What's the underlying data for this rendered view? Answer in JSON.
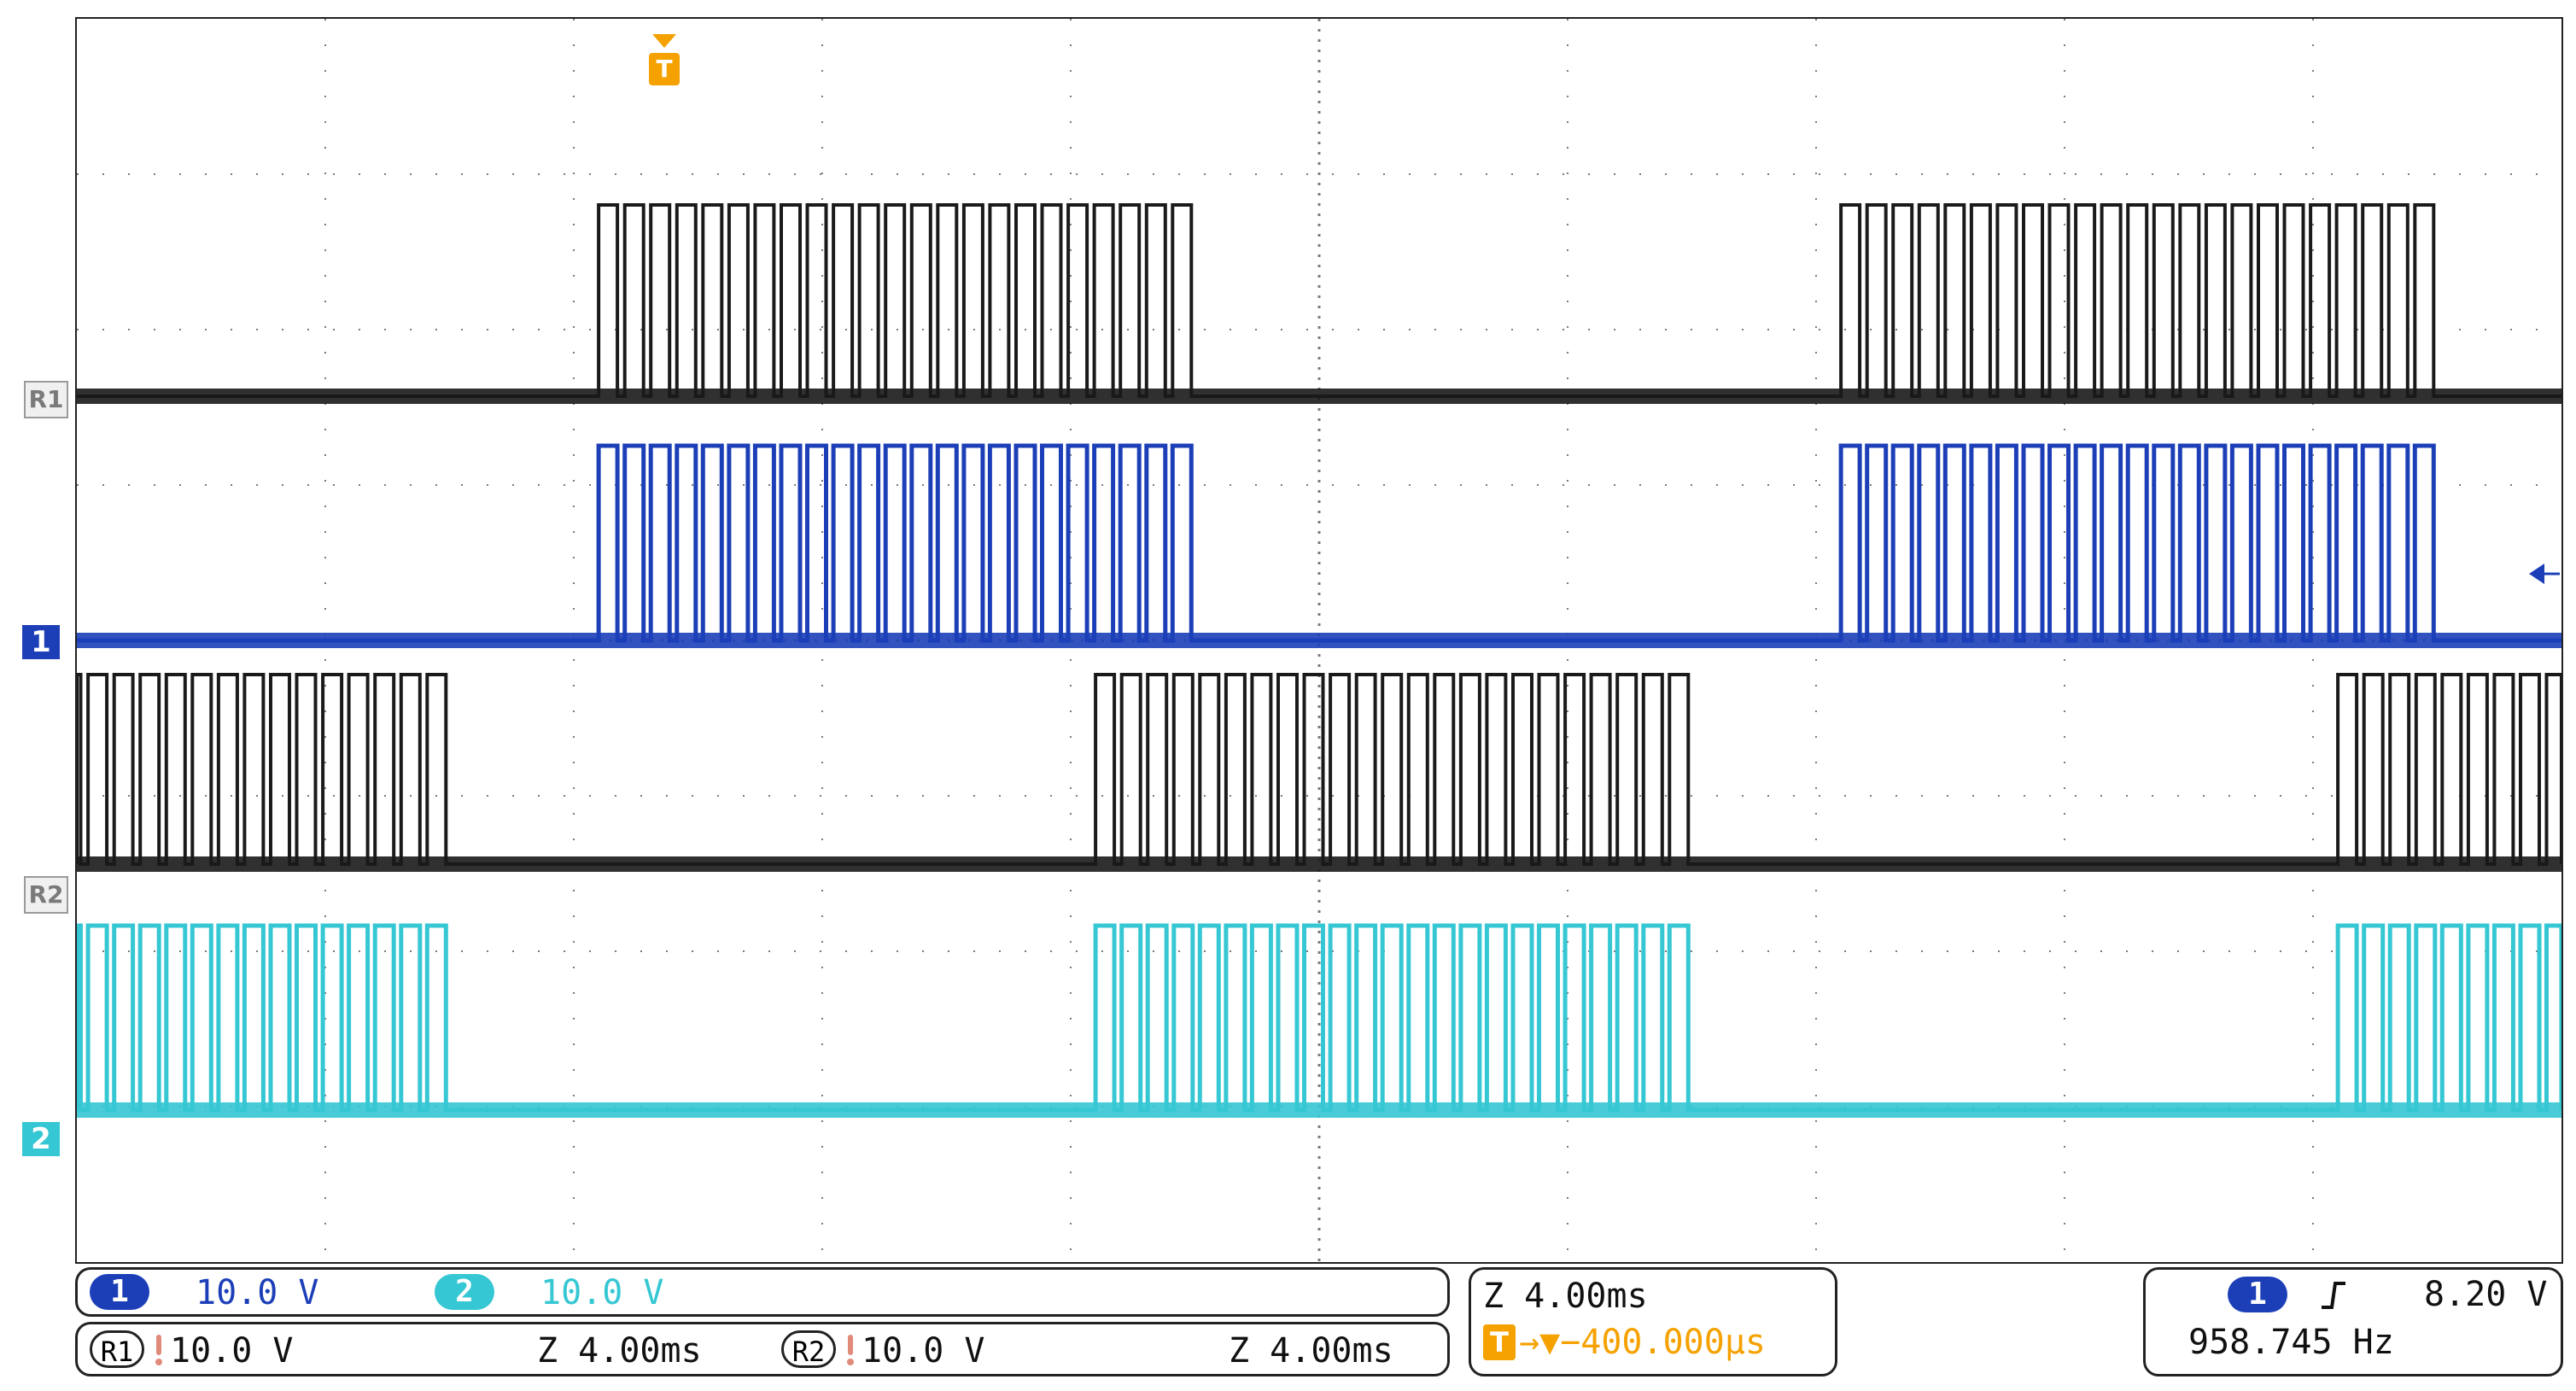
{
  "colors": {
    "ref1": "#1a1a1a",
    "ch1": "#1c3fb8",
    "ref2": "#1a1a1a",
    "ch2": "#35c7d3",
    "trigger": "#f5a100",
    "grid": "#7a7a7a"
  },
  "markers": {
    "ref1": "R1",
    "ch1": "1",
    "ref2": "R2",
    "ch2": "2",
    "trigger": "T"
  },
  "channel_bar": {
    "ch1_badge": "1",
    "ch1_scale": "10.0 V",
    "ch2_badge": "2",
    "ch2_scale": "10.0 V",
    "r1_badge": "R1",
    "r1_scale": "10.0 V",
    "r1_time": "Z 4.00ms",
    "r2_badge": "R2",
    "r2_scale": "10.0 V",
    "r2_time": "Z 4.00ms"
  },
  "timebase": {
    "scale": "Z 4.00ms",
    "trigger_position": "→▼−400.000µs",
    "trigger_badge": "T"
  },
  "trigger_panel": {
    "source_badge": "1",
    "slope_icon": "rising-edge-icon",
    "level": "8.20 V",
    "frequency": "958.745 Hz"
  },
  "waveforms": {
    "burst_period_ms": 16,
    "pulse_period_ms": 0.42,
    "ref1_bursts_start_div": [
      2.1,
      7.1
    ],
    "ref1_burst_length_div": 2.4,
    "ref2_bursts_start_div": [
      -0.9,
      4.1,
      9.1
    ],
    "ref2_burst_length_div": 2.4
  }
}
